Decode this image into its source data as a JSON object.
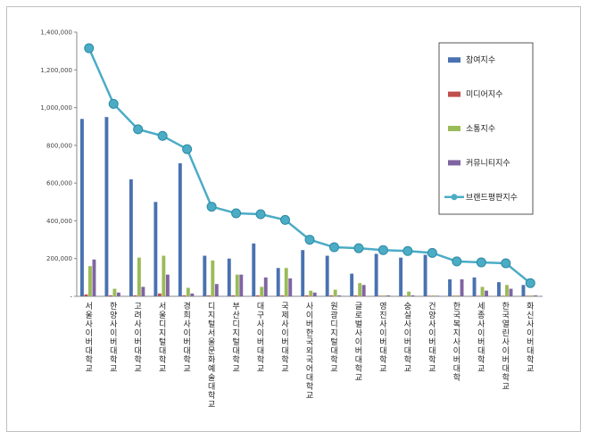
{
  "chart_data": {
    "type": "bar",
    "title": "",
    "xlabel": "",
    "ylabel": "",
    "ylim": [
      0,
      1400000
    ],
    "yticks": [
      0,
      200000,
      400000,
      600000,
      800000,
      1000000,
      1200000,
      1400000
    ],
    "ytick_labels": [
      "-",
      "200,000",
      "400,000",
      "600,000",
      "800,000",
      "1,000,000",
      "1,200,000",
      "1,400,000"
    ],
    "legend_position": "top-right",
    "categories": [
      "서울사이버대학교",
      "한양사이버대학교",
      "고려사이버대학교",
      "서울디지털대학교",
      "경희사이버대학교",
      "디지털서울문화예술대학교",
      "부산디지털대학교",
      "대구사이버대학교",
      "국제사이버대학교",
      "사이버한국외국어대학교",
      "원광디지털대학교",
      "글로벌사이버대학교",
      "영진사이버대학교",
      "숭실사이버대학교",
      "건양사이버대학교",
      "한국복지사이버대학",
      "세종사이버대학교",
      "한국열린사이버대학교",
      "화신사이버대학교"
    ],
    "series": [
      {
        "name": "참여지수",
        "kind": "bar",
        "color": "#4a72b0",
        "values": [
          940000,
          950000,
          620000,
          500000,
          705000,
          215000,
          200000,
          280000,
          150000,
          245000,
          215000,
          120000,
          225000,
          205000,
          220000,
          90000,
          100000,
          75000,
          60000
        ]
      },
      {
        "name": "미디어지수",
        "kind": "bar",
        "color": "#c0504d",
        "values": [
          10000,
          5000,
          5000,
          15000,
          5000,
          5000,
          5000,
          5000,
          5000,
          5000,
          5000,
          5000,
          3000,
          3000,
          3000,
          3000,
          3000,
          3000,
          3000
        ]
      },
      {
        "name": "소통지수",
        "kind": "bar",
        "color": "#9bbb59",
        "values": [
          160000,
          40000,
          205000,
          215000,
          45000,
          190000,
          115000,
          50000,
          150000,
          30000,
          35000,
          70000,
          5000,
          25000,
          5000,
          5000,
          50000,
          60000,
          5000
        ]
      },
      {
        "name": "커뮤니티지수",
        "kind": "bar",
        "color": "#8064a2",
        "values": [
          195000,
          20000,
          50000,
          115000,
          15000,
          65000,
          115000,
          100000,
          95000,
          20000,
          5000,
          60000,
          5000,
          5000,
          3000,
          90000,
          30000,
          40000,
          5000
        ]
      },
      {
        "name": "브랜드평판지수",
        "kind": "line",
        "color": "#4bacc6",
        "values": [
          1315000,
          1020000,
          885000,
          850000,
          780000,
          475000,
          440000,
          435000,
          405000,
          300000,
          260000,
          255000,
          245000,
          240000,
          230000,
          185000,
          180000,
          175000,
          70000
        ]
      }
    ]
  }
}
